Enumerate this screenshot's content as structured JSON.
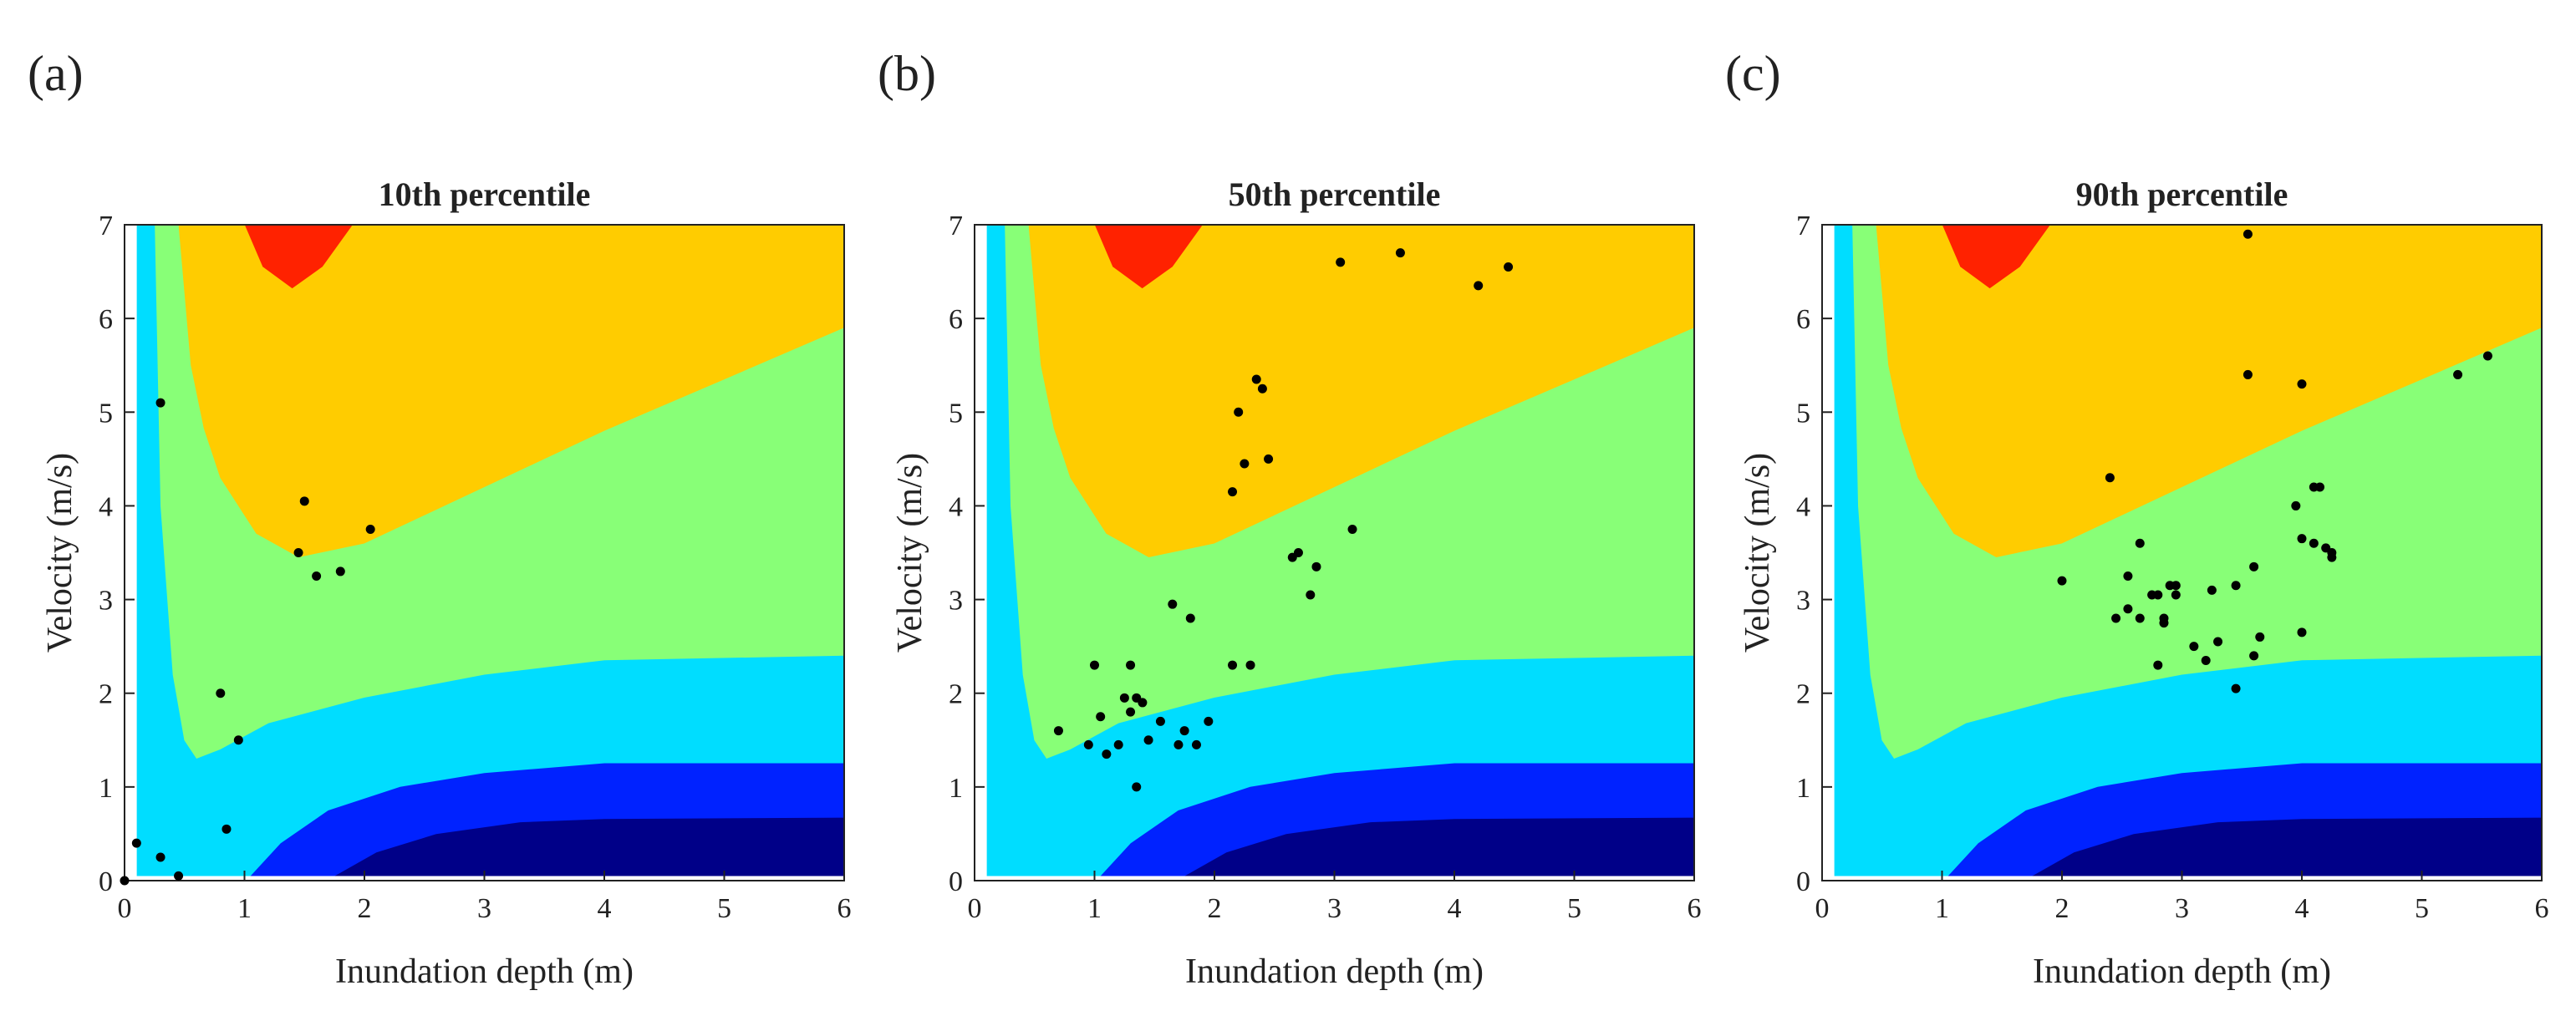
{
  "chart_data": [
    {
      "type": "scatter",
      "panel_label": "(a)",
      "title": "10th percentile",
      "x_label": "Inundation depth (m)",
      "y_label": "Velocity (m/s)",
      "x": [
        0,
        0.1,
        0.3,
        0.45,
        0.3,
        0.8,
        0.85,
        0.95,
        1.45,
        1.5,
        1.6,
        1.8,
        2.05
      ],
      "y": [
        0,
        0.4,
        0.25,
        0.05,
        5.1,
        2.0,
        0.55,
        1.5,
        3.5,
        4.05,
        3.25,
        3.3,
        3.75
      ],
      "color": "#000000",
      "xlim": [
        0,
        6
      ],
      "ylim": [
        0,
        7
      ],
      "xticks": [
        0,
        1,
        2,
        3,
        4,
        5,
        6
      ],
      "yticks": [
        0,
        1,
        2,
        3,
        4,
        5,
        6,
        7
      ]
    },
    {
      "type": "scatter",
      "panel_label": "(b)",
      "title": "50th percentile",
      "x_label": "Inundation depth (m)",
      "y_label": "Velocity (m/s)",
      "x": [
        0.7,
        0.95,
        1.0,
        1.05,
        1.1,
        1.2,
        1.25,
        1.3,
        1.3,
        1.35,
        1.35,
        1.4,
        1.45,
        1.55,
        1.65,
        1.7,
        1.75,
        1.8,
        1.85,
        1.95,
        2.15,
        2.3,
        2.15,
        2.2,
        2.25,
        2.35,
        2.4,
        2.45,
        2.65,
        2.7,
        2.8,
        2.85,
        3.15,
        3.05,
        3.55,
        4.2,
        4.45
      ],
      "y": [
        1.6,
        1.45,
        2.3,
        1.75,
        1.35,
        1.45,
        1.95,
        1.8,
        2.3,
        1.95,
        1.0,
        1.9,
        1.5,
        1.7,
        2.95,
        1.45,
        1.6,
        2.8,
        1.45,
        1.7,
        2.3,
        2.3,
        4.15,
        5.0,
        4.45,
        5.35,
        5.25,
        4.5,
        3.45,
        3.5,
        3.05,
        3.35,
        3.75,
        6.6,
        6.7,
        6.35,
        6.55
      ],
      "color": "#000000",
      "xlim": [
        0,
        6
      ],
      "ylim": [
        0,
        7
      ],
      "xticks": [
        0,
        1,
        2,
        3,
        4,
        5,
        6
      ],
      "yticks": [
        0,
        1,
        2,
        3,
        4,
        5,
        6,
        7
      ]
    },
    {
      "type": "scatter",
      "panel_label": "(c)",
      "title": "90th percentile",
      "x_label": "Inundation depth (m)",
      "y_label": "Velocity (m/s)",
      "x": [
        2.0,
        2.4,
        2.45,
        2.55,
        2.55,
        2.65,
        2.65,
        2.75,
        2.8,
        2.8,
        2.85,
        2.85,
        2.9,
        2.95,
        2.95,
        3.1,
        3.2,
        3.25,
        3.3,
        3.45,
        3.45,
        3.55,
        3.55,
        3.6,
        3.6,
        3.65,
        3.95,
        4.0,
        4.0,
        4.0,
        4.1,
        4.1,
        4.15,
        4.2,
        4.25,
        4.25,
        5.3,
        5.55
      ],
      "y": [
        3.2,
        4.3,
        2.8,
        3.25,
        2.9,
        3.6,
        2.8,
        3.05,
        3.05,
        2.3,
        2.8,
        2.75,
        3.15,
        3.05,
        3.15,
        2.5,
        2.35,
        3.1,
        2.55,
        3.15,
        2.05,
        6.9,
        5.4,
        3.35,
        2.4,
        2.6,
        4.0,
        5.3,
        3.65,
        2.65,
        4.2,
        3.6,
        4.2,
        3.55,
        3.5,
        3.45,
        5.4,
        5.6
      ],
      "color": "#000000",
      "xlim": [
        0,
        6
      ],
      "ylim": [
        0,
        7
      ],
      "xticks": [
        0,
        1,
        2,
        3,
        4,
        5,
        6
      ],
      "yticks": [
        0,
        1,
        2,
        3,
        4,
        5,
        6,
        7
      ]
    }
  ]
}
